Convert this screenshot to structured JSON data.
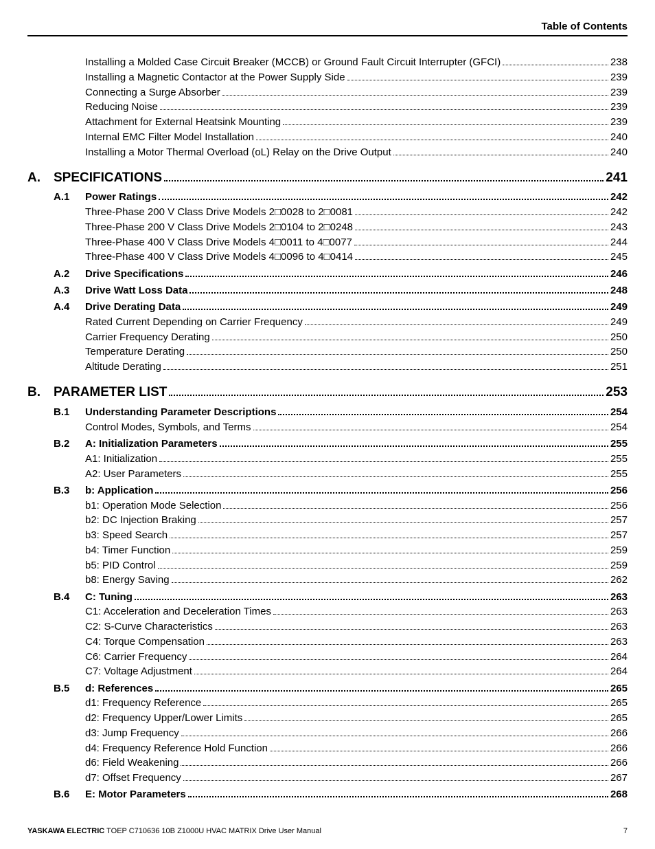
{
  "header": {
    "right": "Table of Contents"
  },
  "footer": {
    "brand": "YASKAWA ELECTRIC",
    "doc": " TOEP C710636 10B Z1000U HVAC MATRIX Drive User Manual",
    "page_number": "7"
  },
  "toc": [
    {
      "level": "sub",
      "num": "",
      "title": "Installing a Molded Case Circuit Breaker (MCCB) or Ground Fault Circuit Interrupter (GFCI)",
      "page": "238"
    },
    {
      "level": "sub",
      "num": "",
      "title": "Installing a Magnetic Contactor at the Power Supply Side",
      "page": "239"
    },
    {
      "level": "sub",
      "num": "",
      "title": "Connecting a Surge Absorber",
      "page": "239"
    },
    {
      "level": "sub",
      "num": "",
      "title": "Reducing Noise",
      "page": "239"
    },
    {
      "level": "sub",
      "num": "",
      "title": "Attachment for External Heatsink Mounting",
      "page": "239"
    },
    {
      "level": "sub",
      "num": "",
      "title": "Internal EMC Filter Model Installation",
      "page": "240"
    },
    {
      "level": "sub",
      "num": "",
      "title": "Installing a Motor Thermal Overload (oL) Relay on the Drive Output",
      "page": "240"
    },
    {
      "level": "chapter",
      "num": "A.",
      "title": "SPECIFICATIONS",
      "page": "241"
    },
    {
      "level": "section",
      "num": "A.1",
      "title": "Power Ratings",
      "page": "242"
    },
    {
      "level": "sub",
      "num": "",
      "title": "Three-Phase 200 V Class Drive Models 2□0028 to 2□0081",
      "page": "242"
    },
    {
      "level": "sub",
      "num": "",
      "title": "Three-Phase 200 V Class Drive Models 2□0104 to 2□0248",
      "page": "243"
    },
    {
      "level": "sub",
      "num": "",
      "title": "Three-Phase 400 V Class Drive Models 4□0011 to 4□0077",
      "page": "244"
    },
    {
      "level": "sub",
      "num": "",
      "title": "Three-Phase 400 V Class Drive Models 4□0096 to 4□0414",
      "page": "245"
    },
    {
      "level": "section",
      "num": "A.2",
      "title": "Drive Specifications",
      "page": "246"
    },
    {
      "level": "section",
      "num": "A.3",
      "title": "Drive Watt Loss Data",
      "page": "248"
    },
    {
      "level": "section",
      "num": "A.4",
      "title": "Drive Derating Data",
      "page": "249"
    },
    {
      "level": "sub",
      "num": "",
      "title": "Rated Current Depending on Carrier Frequency",
      "page": "249"
    },
    {
      "level": "sub",
      "num": "",
      "title": "Carrier Frequency Derating",
      "page": "250"
    },
    {
      "level": "sub",
      "num": "",
      "title": "Temperature Derating",
      "page": "250"
    },
    {
      "level": "sub",
      "num": "",
      "title": "Altitude Derating",
      "page": "251"
    },
    {
      "level": "chapter",
      "num": "B.",
      "title": "PARAMETER LIST",
      "page": "253"
    },
    {
      "level": "section",
      "num": "B.1",
      "title": "Understanding Parameter Descriptions",
      "page": "254"
    },
    {
      "level": "sub",
      "num": "",
      "title": "Control Modes, Symbols, and Terms",
      "page": "254"
    },
    {
      "level": "section",
      "num": "B.2",
      "title": "A: Initialization Parameters",
      "page": "255"
    },
    {
      "level": "sub",
      "num": "",
      "title": "A1: Initialization",
      "page": "255"
    },
    {
      "level": "sub",
      "num": "",
      "title": "A2: User Parameters",
      "page": "255"
    },
    {
      "level": "section",
      "num": "B.3",
      "title": "b: Application",
      "page": "256"
    },
    {
      "level": "sub",
      "num": "",
      "title": "b1: Operation Mode Selection",
      "page": "256"
    },
    {
      "level": "sub",
      "num": "",
      "title": "b2: DC Injection Braking",
      "page": "257"
    },
    {
      "level": "sub",
      "num": "",
      "title": "b3: Speed Search",
      "page": "257"
    },
    {
      "level": "sub",
      "num": "",
      "title": "b4: Timer Function",
      "page": "259"
    },
    {
      "level": "sub",
      "num": "",
      "title": "b5: PID Control",
      "page": "259"
    },
    {
      "level": "sub",
      "num": "",
      "title": "b8: Energy Saving",
      "page": "262"
    },
    {
      "level": "section",
      "num": "B.4",
      "title": "C: Tuning",
      "page": "263"
    },
    {
      "level": "sub",
      "num": "",
      "title": "C1: Acceleration and Deceleration Times",
      "page": "263"
    },
    {
      "level": "sub",
      "num": "",
      "title": "C2: S-Curve Characteristics",
      "page": "263"
    },
    {
      "level": "sub",
      "num": "",
      "title": "C4: Torque Compensation",
      "page": "263"
    },
    {
      "level": "sub",
      "num": "",
      "title": "C6: Carrier Frequency",
      "page": "264"
    },
    {
      "level": "sub",
      "num": "",
      "title": "C7: Voltage Adjustment",
      "page": "264"
    },
    {
      "level": "section",
      "num": "B.5",
      "title": "d: References",
      "page": "265"
    },
    {
      "level": "sub",
      "num": "",
      "title": "d1: Frequency Reference",
      "page": "265"
    },
    {
      "level": "sub",
      "num": "",
      "title": "d2: Frequency Upper/Lower Limits",
      "page": "265"
    },
    {
      "level": "sub",
      "num": "",
      "title": "d3: Jump Frequency",
      "page": "266"
    },
    {
      "level": "sub",
      "num": "",
      "title": "d4: Frequency Reference Hold Function",
      "page": "266"
    },
    {
      "level": "sub",
      "num": "",
      "title": "d6: Field Weakening",
      "page": "266"
    },
    {
      "level": "sub",
      "num": "",
      "title": "d7: Offset Frequency",
      "page": "267"
    },
    {
      "level": "section",
      "num": "B.6",
      "title": "E: Motor Parameters",
      "page": "268"
    }
  ]
}
